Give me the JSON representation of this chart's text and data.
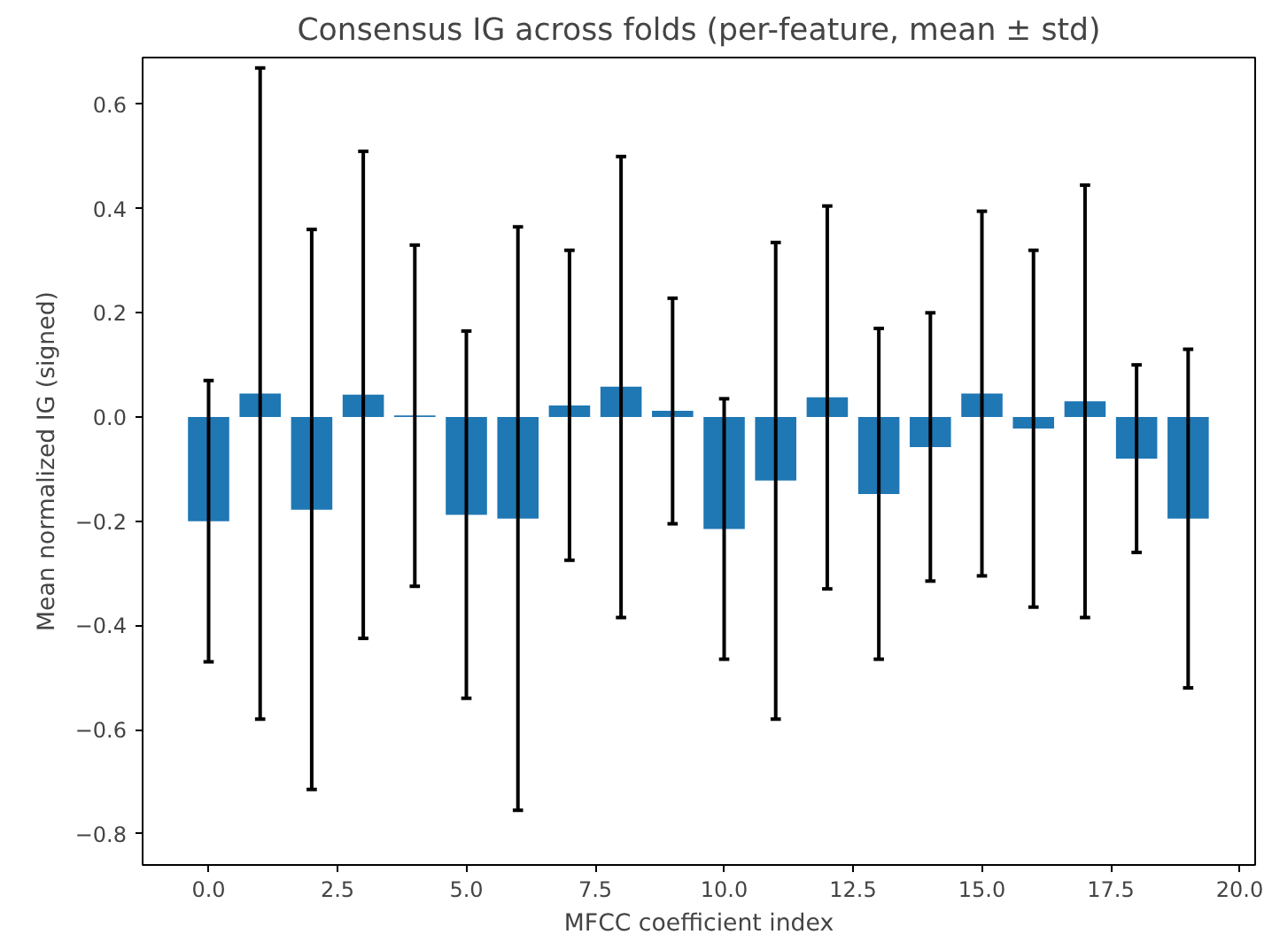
{
  "chart_data": {
    "type": "bar",
    "title": "Consensus IG across folds (per-feature, mean ± std)",
    "xlabel": "MFCC coefficient index",
    "ylabel": "Mean normalized IG (signed)",
    "x": [
      0,
      1,
      2,
      3,
      4,
      5,
      6,
      7,
      8,
      9,
      10,
      11,
      12,
      13,
      14,
      15,
      16,
      17,
      18,
      19
    ],
    "values": [
      -0.2,
      0.045,
      -0.178,
      0.043,
      0.003,
      -0.188,
      -0.195,
      0.022,
      0.058,
      0.012,
      -0.215,
      -0.122,
      0.038,
      -0.148,
      -0.058,
      0.045,
      -0.022,
      0.03,
      -0.08,
      -0.195
    ],
    "errors": [
      [
        -0.47,
        0.07
      ],
      [
        -0.58,
        0.67
      ],
      [
        -0.715,
        0.36
      ],
      [
        -0.425,
        0.51
      ],
      [
        -0.325,
        0.33
      ],
      [
        -0.54,
        0.165
      ],
      [
        -0.755,
        0.365
      ],
      [
        -0.275,
        0.32
      ],
      [
        -0.385,
        0.5
      ],
      [
        -0.205,
        0.228
      ],
      [
        -0.465,
        0.035
      ],
      [
        -0.58,
        0.335
      ],
      [
        -0.33,
        0.405
      ],
      [
        -0.465,
        0.17
      ],
      [
        -0.315,
        0.2
      ],
      [
        -0.305,
        0.395
      ],
      [
        -0.365,
        0.32
      ],
      [
        -0.385,
        0.445
      ],
      [
        -0.26,
        0.1
      ],
      [
        -0.52,
        0.13
      ]
    ],
    "color": "#1f77b4",
    "xlim": [
      -1.28,
      20.3
    ],
    "ylim": [
      -0.86,
      0.69
    ],
    "xticks": [
      {
        "value": 0,
        "label": "0.0"
      },
      {
        "value": 2.5,
        "label": "2.5"
      },
      {
        "value": 5,
        "label": "5.0"
      },
      {
        "value": 7.5,
        "label": "7.5"
      },
      {
        "value": 10,
        "label": "10.0"
      },
      {
        "value": 12.5,
        "label": "12.5"
      },
      {
        "value": 15,
        "label": "15.0"
      },
      {
        "value": 17.5,
        "label": "17.5"
      },
      {
        "value": 20,
        "label": "20.0"
      }
    ],
    "yticks": [
      {
        "value": -0.8,
        "label": "−0.8"
      },
      {
        "value": -0.6,
        "label": "−0.6"
      },
      {
        "value": -0.4,
        "label": "−0.4"
      },
      {
        "value": -0.2,
        "label": "−0.2"
      },
      {
        "value": 0,
        "label": "0.0"
      },
      {
        "value": 0.2,
        "label": "0.2"
      },
      {
        "value": 0.4,
        "label": "0.4"
      },
      {
        "value": 0.6,
        "label": "0.6"
      }
    ],
    "grid": false
  }
}
